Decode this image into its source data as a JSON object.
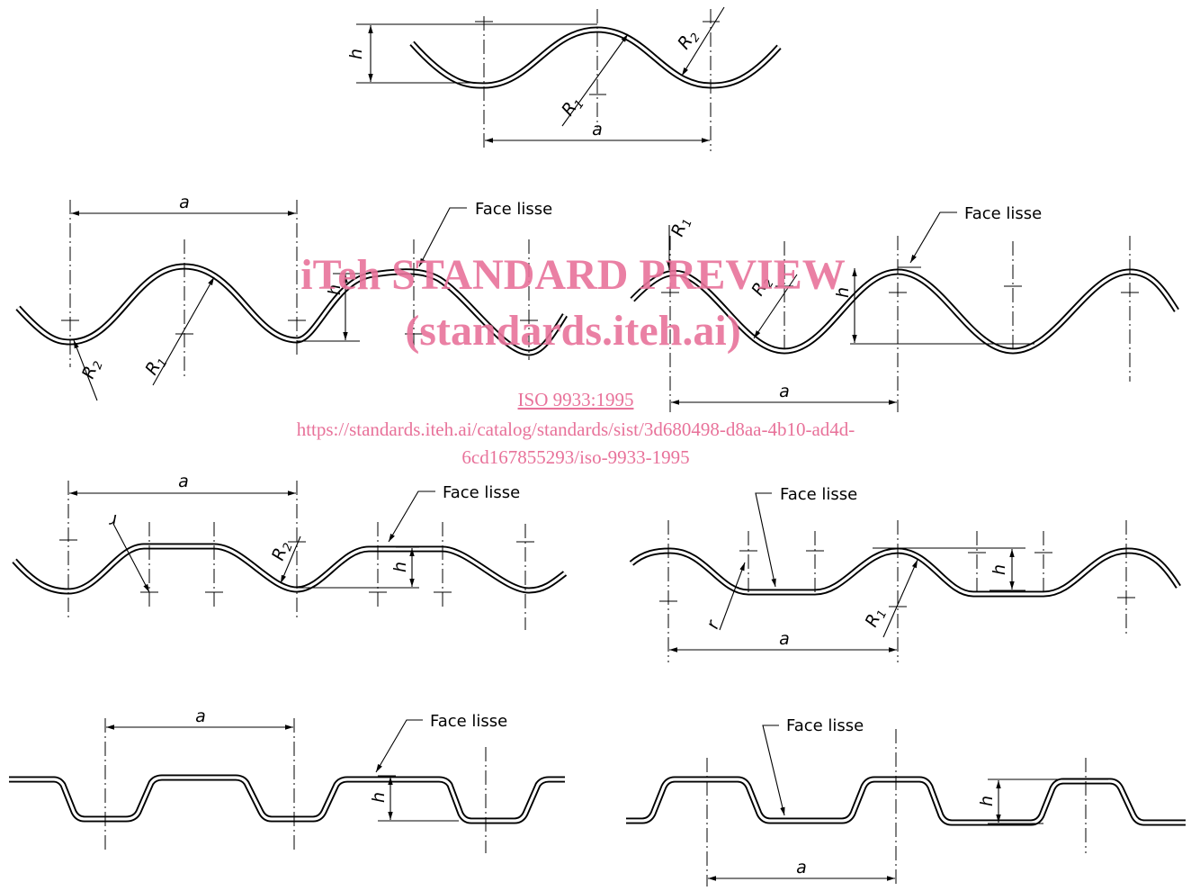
{
  "labels": {
    "a": "a",
    "h": "h",
    "r": "r",
    "R1_main": "R",
    "R1_sub": "1",
    "R2_main": "R",
    "R2_sub": "2",
    "face_lisse": "Face lisse"
  },
  "watermark": {
    "title": "iTeh STANDARD PREVIEW",
    "subtitle": "(standards.iteh.ai)",
    "standard": "ISO 9933:1995",
    "url_line1": "https://standards.iteh.ai/catalog/standards/sist/3d680498-d8aa-4b10-ad4d-",
    "url_line2": "6cd167855293/iso-9933-1995"
  },
  "colors": {
    "line": "#000000",
    "watermark": "#e8729a"
  }
}
